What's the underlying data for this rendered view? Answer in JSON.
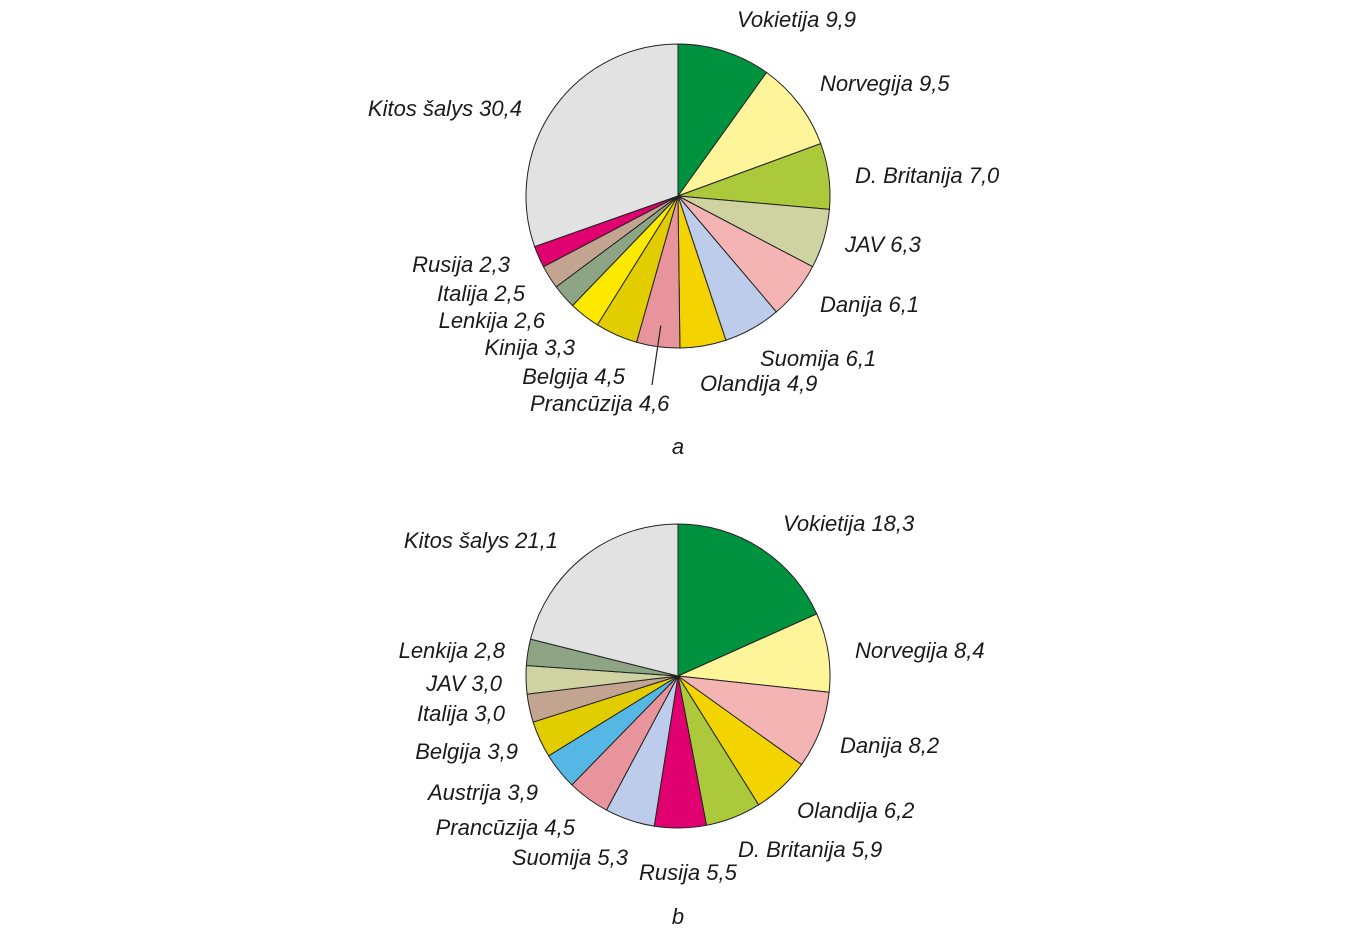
{
  "chart_data": [
    {
      "type": "pie",
      "caption": "a",
      "slices": [
        {
          "label": "Vokietija 9,9",
          "value": 9.9,
          "color": "#00923f"
        },
        {
          "label": "Norvegija 9,5",
          "value": 9.5,
          "color": "#fef59a"
        },
        {
          "label": "D. Britanija 7,0",
          "value": 7.0,
          "color": "#abc93a"
        },
        {
          "label": "JAV 6,3",
          "value": 6.3,
          "color": "#cfd3a2"
        },
        {
          "label": "Danija 6,1",
          "value": 6.1,
          "color": "#f4b4b4"
        },
        {
          "label": "Suomija 6,1",
          "value": 6.1,
          "color": "#bcccea"
        },
        {
          "label": "Olandija 4,9",
          "value": 4.9,
          "color": "#f4d400"
        },
        {
          "label": "Prancūzija 4,6",
          "value": 4.6,
          "color": "#e8949c"
        },
        {
          "label": "Belgija 4,5",
          "value": 4.5,
          "color": "#e1cd00"
        },
        {
          "label": "Kinija 3,3",
          "value": 3.3,
          "color": "#fde800"
        },
        {
          "label": "Lenkija 2,6",
          "value": 2.6,
          "color": "#8da585"
        },
        {
          "label": "Italija 2,5",
          "value": 2.5,
          "color": "#c2a490"
        },
        {
          "label": "Rusija 2,3",
          "value": 2.3,
          "color": "#e0006f"
        },
        {
          "label": "Kitos šalys 30,4",
          "value": 30.4,
          "color": "#e2e2e2"
        }
      ]
    },
    {
      "type": "pie",
      "caption": "b",
      "slices": [
        {
          "label": "Vokietija 18,3",
          "value": 18.3,
          "color": "#00923f"
        },
        {
          "label": "Norvegija 8,4",
          "value": 8.4,
          "color": "#fef59a"
        },
        {
          "label": "Danija 8,2",
          "value": 8.2,
          "color": "#f4b4b4"
        },
        {
          "label": "Olandija 6,2",
          "value": 6.2,
          "color": "#f4d400"
        },
        {
          "label": "D. Britanija 5,9",
          "value": 5.9,
          "color": "#abc93a"
        },
        {
          "label": "Rusija 5,5",
          "value": 5.5,
          "color": "#e0006f"
        },
        {
          "label": "Suomija 5,3",
          "value": 5.3,
          "color": "#bcccea"
        },
        {
          "label": "Prancūzija 4,5",
          "value": 4.5,
          "color": "#e8949c"
        },
        {
          "label": "Austrija 3,9",
          "value": 3.9,
          "color": "#55b8e4"
        },
        {
          "label": "Belgija 3,9",
          "value": 3.9,
          "color": "#e1cd00"
        },
        {
          "label": "Italija 3,0",
          "value": 3.0,
          "color": "#c2a490"
        },
        {
          "label": "JAV 3,0",
          "value": 3.0,
          "color": "#cfd3a2"
        },
        {
          "label": "Lenkija 2,8",
          "value": 2.8,
          "color": "#8da585"
        },
        {
          "label": "Kitos šalys 21,1",
          "value": 21.1,
          "color": "#e2e2e2"
        }
      ]
    }
  ]
}
